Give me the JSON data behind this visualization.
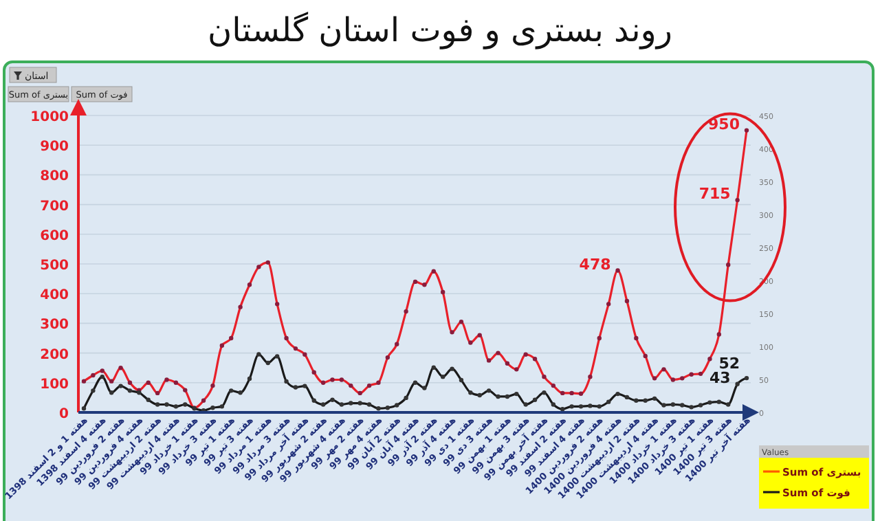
{
  "chart_data": {
    "type": "line",
    "title": "روند بستری و فوت استان گلستان",
    "categories": [
      "هفته 1 و 2 اسفند 1398",
      null,
      "هفته 4 اسفند 1398",
      null,
      "هفته 2 فروردین 99",
      null,
      "هفته 4 فروردین 99",
      null,
      "هفته 2 اردیبهشت 99",
      null,
      "هفته 4 اردیبهشت 99",
      null,
      "هفته 1 خرداد 99",
      null,
      "هفته 3 خرداد 99",
      null,
      "هفته 1 تیر 99",
      null,
      "هفته 3 تیر 99",
      null,
      "هفته 1 مرداد 99",
      null,
      "هفته 3 مرداد 99",
      null,
      "هفته آخر مرداد 99",
      null,
      "هفته 2 شهریور 99",
      null,
      "هفته 4 شهریور 99",
      null,
      "هفته 2 مهر 99",
      null,
      "هفته 4 مهر 99",
      null,
      "هفته 2 آبان 99",
      null,
      "هفته 4 آبان 99",
      null,
      "هفته 2 آذر 99",
      null,
      "هفته 4 آذر 99",
      null,
      "هفته 1 دی 99",
      null,
      "هفته 3 دی 99",
      null,
      "هفته 1 بهمن 99",
      null,
      "هفته 3 بهمن 99",
      null,
      "هفته آخر بهمن 99",
      null,
      "هفته 2 اسفند 99",
      null,
      "هفته 4 اسفند 99",
      null,
      "هفته 2 فروردین 1400",
      null,
      "هفته 4 فروردین 1400",
      null,
      "هفته 2 اردیبهشت 1400",
      null,
      "هفته 4 اردیبهشت 1400",
      null,
      "هفته 1 خرداد 1400",
      null,
      "هفته 3 خرداد 1400",
      null,
      "هفته 1 تیر 1400",
      null,
      "هفته 3 تیر 1400",
      null,
      "هفته آخر تیر 1400"
    ],
    "series": [
      {
        "name": "Sum of بستری",
        "color": "#e8202a",
        "values": [
          105,
          125,
          140,
          105,
          150,
          100,
          75,
          100,
          65,
          110,
          100,
          75,
          15,
          40,
          90,
          225,
          250,
          355,
          430,
          490,
          505,
          365,
          250,
          215,
          195,
          135,
          100,
          110,
          110,
          90,
          65,
          90,
          100,
          185,
          230,
          340,
          440,
          430,
          475,
          405,
          270,
          305,
          235,
          260,
          175,
          200,
          165,
          145,
          195,
          180,
          120,
          90,
          65,
          65,
          63,
          120,
          250,
          365,
          478,
          375,
          250,
          190,
          115,
          145,
          110,
          115,
          128,
          130,
          180,
          263,
          497,
          715,
          950
        ],
        "value_labels": [
          null,
          null,
          null,
          null,
          null,
          null,
          null,
          null,
          null,
          null,
          null,
          null,
          null,
          null,
          null,
          null,
          null,
          null,
          null,
          null,
          null,
          null,
          null,
          null,
          null,
          null,
          null,
          null,
          null,
          null,
          null,
          null,
          null,
          null,
          null,
          null,
          null,
          null,
          null,
          null,
          null,
          null,
          null,
          null,
          null,
          null,
          null,
          null,
          null,
          null,
          null,
          null,
          null,
          null,
          null,
          null,
          null,
          null,
          "478",
          null,
          null,
          null,
          null,
          null,
          null,
          null,
          null,
          null,
          null,
          null,
          null,
          "715",
          "950"
        ]
      },
      {
        "name": "Sum of فوت",
        "color": "#1a1a1a",
        "axis": "y2",
        "values": [
          6,
          33,
          54,
          30,
          40,
          33,
          30,
          19,
          12,
          12,
          9,
          12,
          6,
          3,
          7,
          9,
          33,
          30,
          51,
          88,
          75,
          85,
          47,
          38,
          40,
          18,
          12,
          19,
          12,
          14,
          14,
          12,
          6,
          7,
          11,
          22,
          45,
          37,
          68,
          54,
          66,
          49,
          30,
          26,
          33,
          24,
          24,
          28,
          12,
          19,
          30,
          12,
          5,
          9,
          9,
          10,
          9,
          16,
          28,
          23,
          18,
          18,
          21,
          11,
          12,
          11,
          8,
          11,
          15,
          16,
          12,
          43,
          52
        ],
        "value_labels": [
          null,
          null,
          null,
          null,
          null,
          null,
          null,
          null,
          null,
          null,
          null,
          null,
          null,
          null,
          null,
          null,
          null,
          null,
          null,
          null,
          null,
          null,
          null,
          null,
          null,
          null,
          null,
          null,
          null,
          null,
          null,
          null,
          null,
          null,
          null,
          null,
          null,
          null,
          null,
          null,
          null,
          null,
          null,
          null,
          null,
          null,
          null,
          null,
          null,
          null,
          null,
          null,
          null,
          null,
          null,
          null,
          null,
          null,
          null,
          null,
          null,
          null,
          null,
          null,
          null,
          null,
          null,
          null,
          null,
          null,
          null,
          "43",
          "52"
        ]
      }
    ],
    "ylim": [
      0,
      1000
    ],
    "yticks": [
      0,
      100,
      200,
      300,
      400,
      500,
      600,
      700,
      800,
      900,
      1000
    ],
    "y2lim": [
      0,
      450
    ],
    "y2ticks": [
      0,
      50,
      100,
      150,
      200,
      250,
      300,
      350,
      400,
      450
    ],
    "grid": "y",
    "marker": "circle",
    "legend": "bottom right",
    "legend_title": "Values",
    "annotations": [
      "استان",
      "Sum of بستری",
      "Sum of فوت"
    ]
  }
}
